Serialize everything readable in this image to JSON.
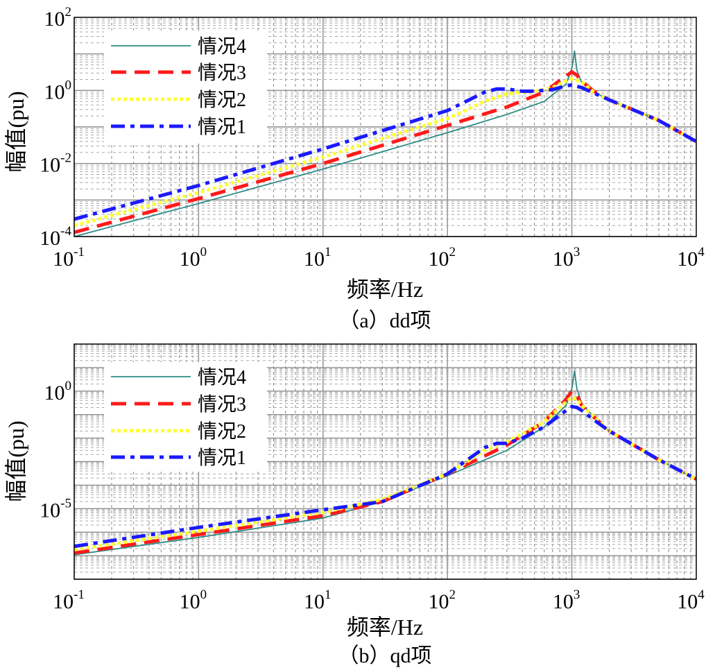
{
  "chart_data": [
    {
      "type": "line",
      "caption": "（a）dd项",
      "xlabel": "频率/Hz",
      "ylabel": "幅值(pu)",
      "xscale": "log",
      "yscale": "log",
      "xlim": [
        0.1,
        10000
      ],
      "ylim": [
        0.0001,
        100
      ],
      "grid": true,
      "legend_position": "top-left",
      "x_ticks": [
        {
          "base": "10",
          "exp": "-1",
          "value": 0.1
        },
        {
          "base": "10",
          "exp": "0",
          "value": 1
        },
        {
          "base": "10",
          "exp": "1",
          "value": 10
        },
        {
          "base": "10",
          "exp": "2",
          "value": 100
        },
        {
          "base": "10",
          "exp": "3",
          "value": 1000
        },
        {
          "base": "10",
          "exp": "4",
          "value": 10000
        }
      ],
      "y_ticks": [
        {
          "base": "10",
          "exp": "-4",
          "value": 0.0001
        },
        {
          "base": "10",
          "exp": "-2",
          "value": 0.01
        },
        {
          "base": "10",
          "exp": "0",
          "value": 1
        },
        {
          "base": "10",
          "exp": "2",
          "value": 100
        }
      ],
      "series": [
        {
          "name": "情况4",
          "color": "#2e8b86",
          "style": "solid",
          "x": [
            0.1,
            1,
            10,
            100,
            300,
            600,
            900,
            1000,
            1050,
            1100,
            1200,
            1500,
            2000,
            5000,
            10000
          ],
          "y": [
            0.0001,
            0.0008,
            0.007,
            0.07,
            0.22,
            0.5,
            1.5,
            4,
            12,
            3.5,
            1.6,
            0.9,
            0.55,
            0.15,
            0.04
          ]
        },
        {
          "name": "情况3",
          "color": "#ff1a1a",
          "style": "dashed",
          "x": [
            0.1,
            1,
            10,
            100,
            300,
            600,
            900,
            1000,
            1100,
            1200,
            1500,
            2000,
            5000,
            10000
          ],
          "y": [
            0.00013,
            0.0011,
            0.01,
            0.11,
            0.35,
            0.9,
            2.5,
            3.2,
            2.6,
            1.8,
            0.95,
            0.55,
            0.15,
            0.04
          ]
        },
        {
          "name": "情况2",
          "color": "#ffff33",
          "style": "dotted",
          "x": [
            0.1,
            1,
            10,
            100,
            200,
            300,
            400,
            500,
            700,
            900,
            1000,
            1200,
            1500,
            2000,
            5000,
            10000
          ],
          "y": [
            0.0002,
            0.0016,
            0.015,
            0.17,
            0.5,
            0.8,
            0.9,
            0.95,
            1.2,
            1.8,
            2.1,
            1.7,
            0.9,
            0.55,
            0.15,
            0.04
          ]
        },
        {
          "name": "情况1",
          "color": "#1a1aff",
          "style": "dashdot",
          "x": [
            0.1,
            1,
            10,
            100,
            200,
            250,
            300,
            400,
            500,
            700,
            900,
            1000,
            1200,
            1500,
            2000,
            5000,
            10000
          ],
          "y": [
            0.0003,
            0.0025,
            0.025,
            0.28,
            0.9,
            1.1,
            1.1,
            0.95,
            0.95,
            1.05,
            1.35,
            1.4,
            1.2,
            0.85,
            0.55,
            0.15,
            0.04
          ]
        }
      ]
    },
    {
      "type": "line",
      "caption": "（b）qd项",
      "xlabel": "频率/Hz",
      "ylabel": "幅值(pu)",
      "xscale": "log",
      "yscale": "log",
      "xlim": [
        0.1,
        10000
      ],
      "ylim": [
        1e-08,
        100
      ],
      "grid": true,
      "legend_position": "top-left",
      "x_ticks": [
        {
          "base": "10",
          "exp": "-1",
          "value": 0.1
        },
        {
          "base": "10",
          "exp": "0",
          "value": 1
        },
        {
          "base": "10",
          "exp": "1",
          "value": 10
        },
        {
          "base": "10",
          "exp": "2",
          "value": 100
        },
        {
          "base": "10",
          "exp": "3",
          "value": 1000
        },
        {
          "base": "10",
          "exp": "4",
          "value": 10000
        }
      ],
      "y_ticks": [
        {
          "base": "10",
          "exp": "-5",
          "value": 1e-05
        },
        {
          "base": "10",
          "exp": "0",
          "value": 1
        }
      ],
      "series": [
        {
          "name": "情况4",
          "color": "#2e8b86",
          "style": "solid",
          "x": [
            0.1,
            1,
            10,
            30,
            100,
            300,
            600,
            900,
            1000,
            1050,
            1100,
            1200,
            1500,
            2000,
            5000,
            10000
          ],
          "y": [
            1.1e-07,
            6e-07,
            4e-06,
            2e-05,
            0.00025,
            0.003,
            0.03,
            0.25,
            1.3,
            7,
            1.2,
            0.3,
            0.08,
            0.02,
            0.0012,
            0.00018
          ]
        },
        {
          "name": "情况3",
          "color": "#ff1a1a",
          "style": "dashed",
          "x": [
            0.1,
            1,
            10,
            30,
            100,
            300,
            600,
            900,
            1000,
            1100,
            1200,
            1500,
            2000,
            5000,
            10000
          ],
          "y": [
            1.3e-07,
            8e-07,
            5e-06,
            2e-05,
            0.0003,
            0.005,
            0.05,
            0.45,
            1.0,
            0.6,
            0.25,
            0.08,
            0.02,
            0.0012,
            0.00018
          ]
        },
        {
          "name": "情况2",
          "color": "#ffff33",
          "style": "dotted",
          "x": [
            0.1,
            1,
            10,
            30,
            100,
            200,
            300,
            600,
            900,
            1000,
            1100,
            1200,
            1500,
            2000,
            5000,
            10000
          ],
          "y": [
            1.8e-07,
            1.1e-06,
            7e-06,
            2.5e-05,
            0.0003,
            0.003,
            0.007,
            0.05,
            0.35,
            0.55,
            0.45,
            0.25,
            0.08,
            0.02,
            0.0012,
            0.00018
          ]
        },
        {
          "name": "情况1",
          "color": "#1a1aff",
          "style": "dashdot",
          "x": [
            0.1,
            1,
            10,
            30,
            100,
            200,
            250,
            300,
            400,
            600,
            900,
            1000,
            1100,
            1200,
            1500,
            2000,
            5000,
            10000
          ],
          "y": [
            2.5e-07,
            1.6e-06,
            9e-06,
            2e-05,
            0.0003,
            0.004,
            0.006,
            0.006,
            0.01,
            0.03,
            0.15,
            0.22,
            0.2,
            0.15,
            0.06,
            0.02,
            0.0012,
            0.00018
          ]
        }
      ]
    }
  ]
}
